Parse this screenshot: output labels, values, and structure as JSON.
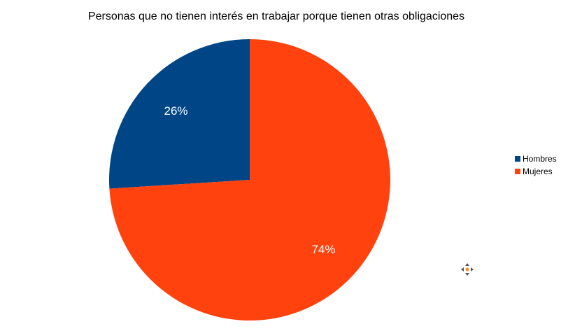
{
  "chart_data": {
    "type": "pie",
    "title": "Personas que no tienen interés en trabajar porque tienen otras obligaciones",
    "categories": [
      "Hombres",
      "Mujeres"
    ],
    "values": [
      26,
      74
    ],
    "labels": [
      "26%",
      "74%"
    ],
    "colors": [
      "#004586",
      "#ff420e"
    ],
    "legend_position": "right"
  },
  "ui": {
    "move_handle_icon": "move-cursor-icon"
  }
}
